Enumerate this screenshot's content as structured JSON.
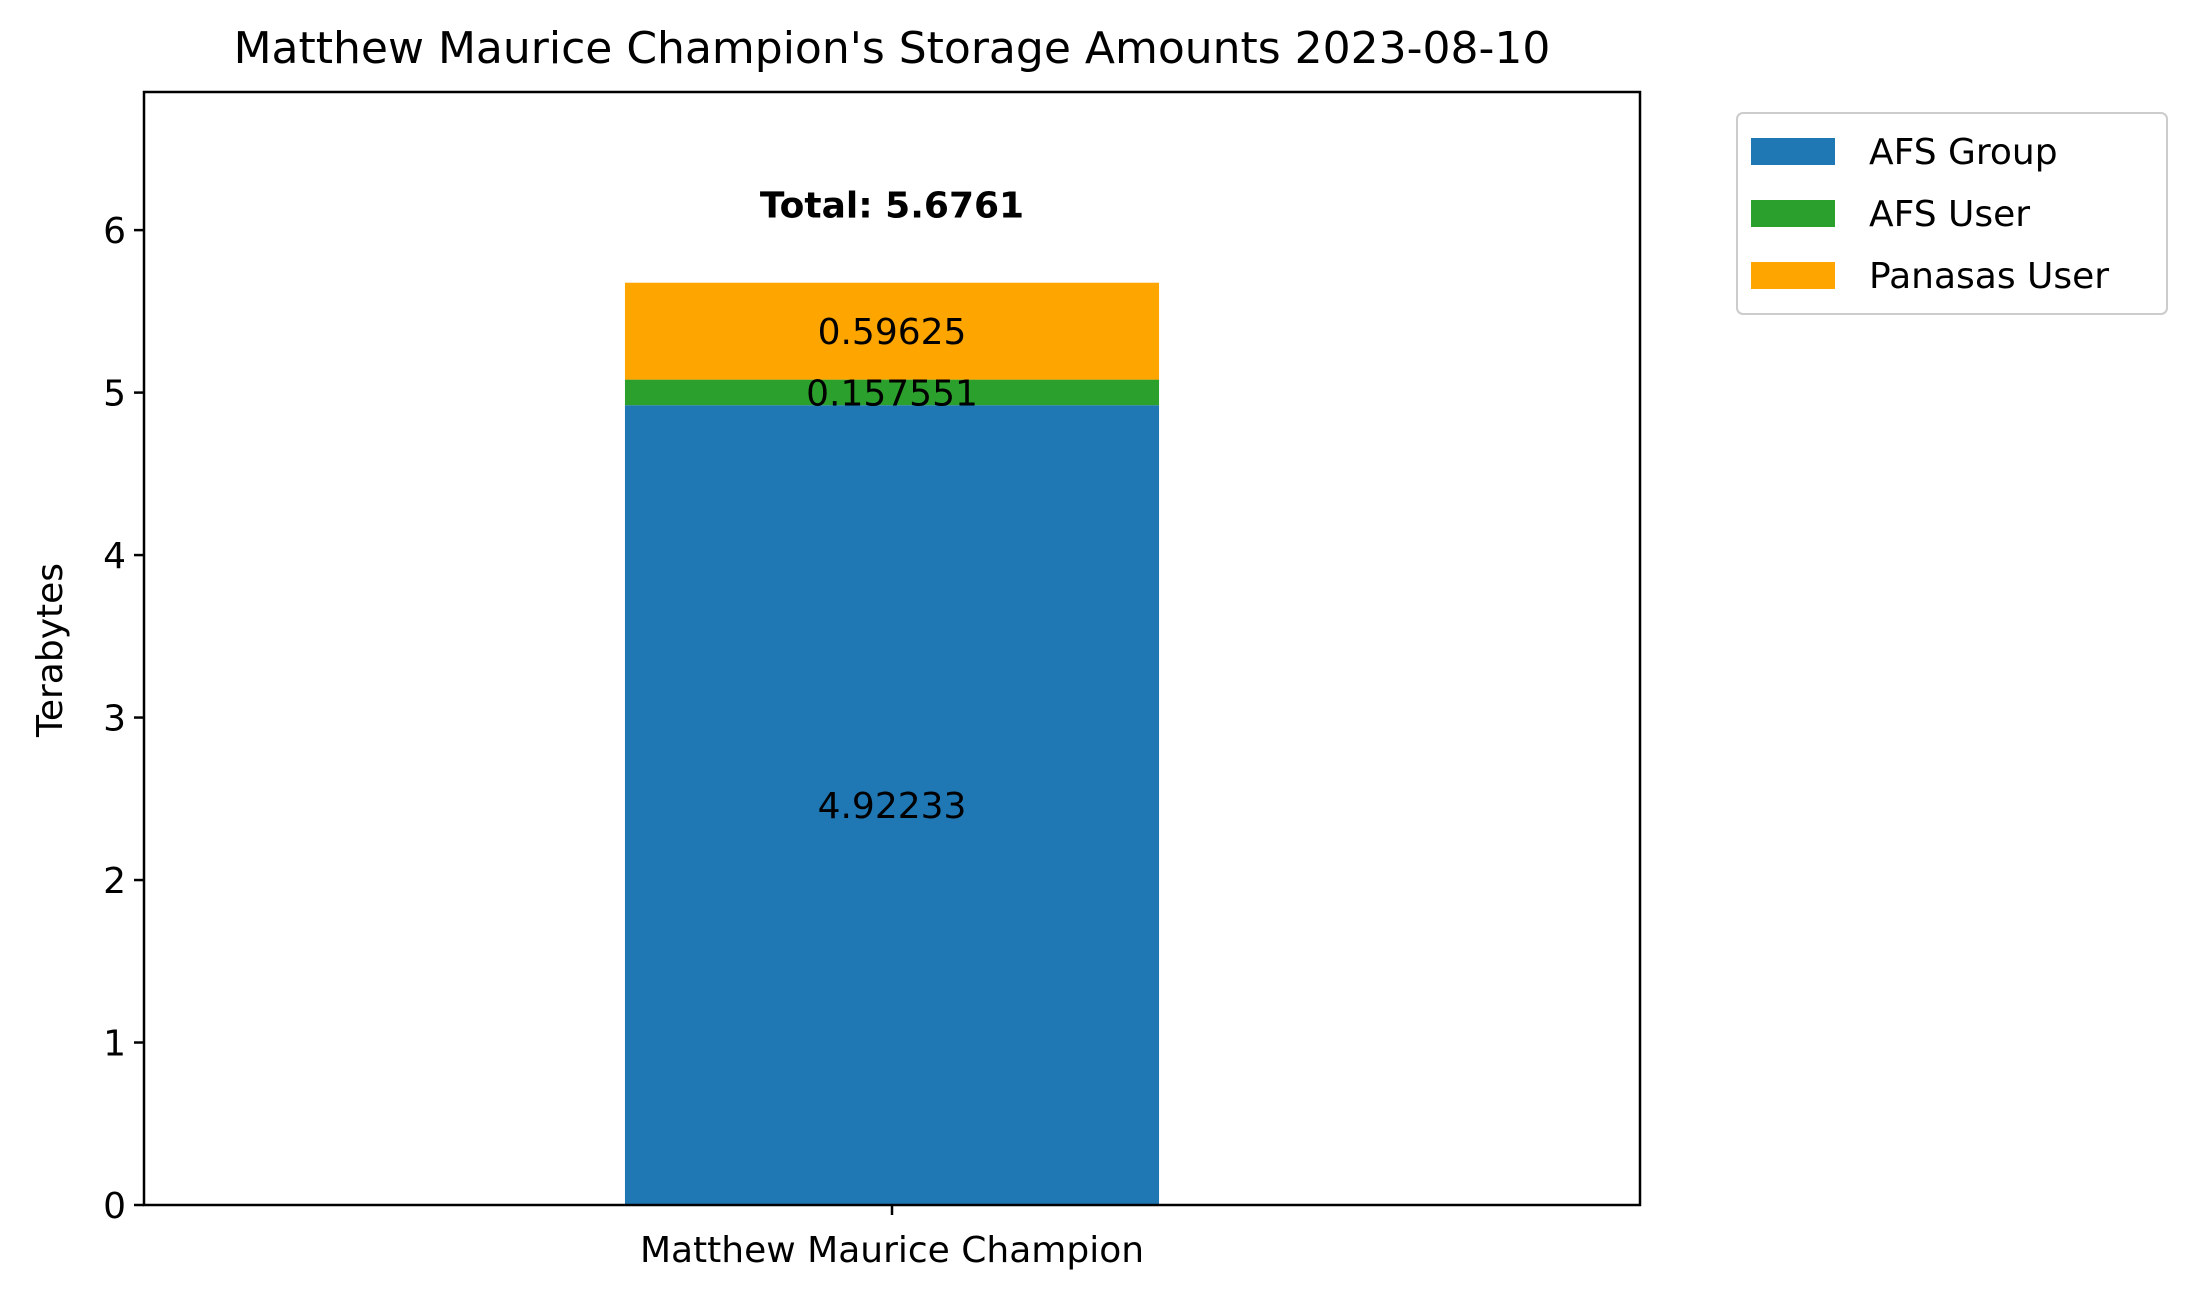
{
  "chart_data": {
    "type": "bar",
    "stacked": true,
    "title": "Matthew Maurice Champion's Storage Amounts 2023-08-10",
    "xlabel": "",
    "ylabel": "Terabytes",
    "categories": [
      "Matthew Maurice Champion"
    ],
    "ylim": [
      0,
      6.85
    ],
    "yticks": [
      0,
      1,
      2,
      3,
      4,
      5,
      6
    ],
    "grid": false,
    "legend_position": "outside-top-right",
    "series": [
      {
        "name": "AFS Group",
        "values": [
          4.92233
        ],
        "label": "4.92233",
        "color": "#1f77b4"
      },
      {
        "name": "AFS User",
        "values": [
          0.157551
        ],
        "label": "0.157551",
        "color": "#2ca02c"
      },
      {
        "name": "Panasas User",
        "values": [
          0.59625
        ],
        "label": "0.59625",
        "color": "#ffa500"
      }
    ],
    "total_label": "Total: 5.6761"
  }
}
